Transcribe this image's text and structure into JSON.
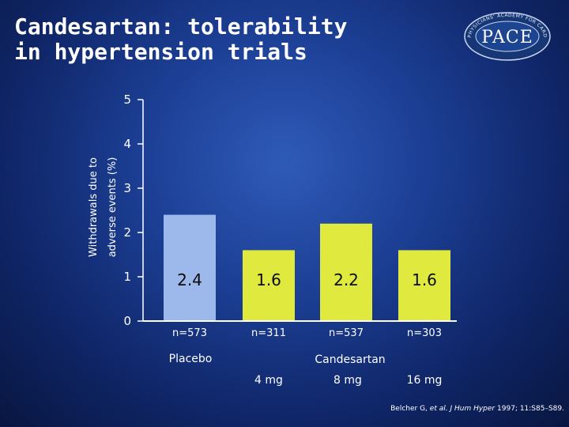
{
  "slide": {
    "title_line1": "Candesartan: tolerability",
    "title_line2": "in hypertension trials",
    "citation": {
      "authors": "Belcher G, ",
      "etal": "et al.",
      "journal": "J Hum Hyper",
      "details": "1997; 11:S85–S89."
    }
  },
  "logo": {
    "text": "PACE",
    "ring_text": "PHYSICIANS' ACADEMY FOR CARDIOVASCULAR EDUCATION"
  },
  "colors": {
    "placebo_bar": "#9db8ea",
    "candesartan_bar": "#e0ea3e",
    "axis": "#ffffff"
  },
  "chart_data": {
    "type": "bar",
    "ylabel_line1": "Withdrawals due to",
    "ylabel_line2": "adverse events (%)",
    "ylim": [
      0,
      5
    ],
    "yticks": [
      "0",
      "1",
      "2",
      "3",
      "4",
      "5"
    ],
    "categories": [
      "Placebo",
      "4 mg",
      "8 mg",
      "16 mg"
    ],
    "values": [
      2.4,
      1.6,
      2.2,
      1.6
    ],
    "value_labels": [
      "2.4",
      "1.6",
      "2.2",
      "1.6"
    ],
    "n_labels": [
      "n=573",
      "n=311",
      "n=537",
      "n=303"
    ],
    "series_group": [
      "placebo",
      "candesartan",
      "candesartan",
      "candesartan"
    ],
    "group_labels": {
      "placebo": "Placebo",
      "candesartan": "Candesartan"
    },
    "dose_labels": [
      "4 mg",
      "8 mg",
      "16 mg"
    ]
  }
}
